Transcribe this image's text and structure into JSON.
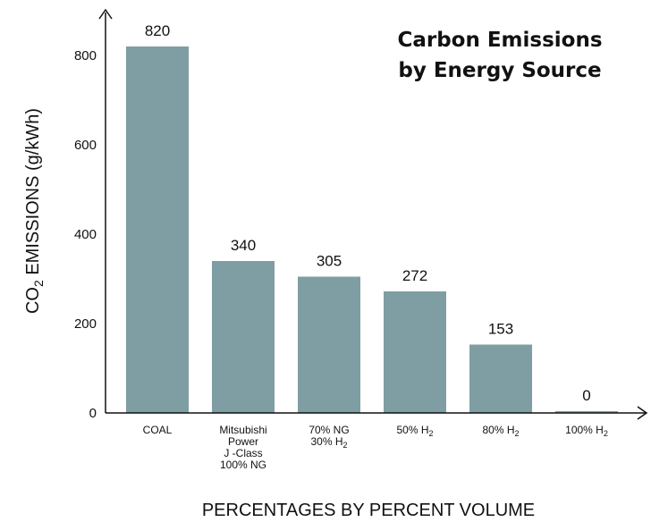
{
  "chart_data": {
    "type": "bar",
    "title_lines": [
      "Carbon Emissions",
      "by Energy Source"
    ],
    "ylabel": {
      "main": "CO",
      "sub": "2",
      "rest": " EMISSIONS (g/kWh)"
    },
    "xlabel": "PERCENTAGES BY PERCENT VOLUME",
    "ylim": [
      0,
      860
    ],
    "yticks": [
      0,
      200,
      400,
      600,
      800
    ],
    "categories": [
      {
        "lines": [
          [
            {
              "t": "COAL"
            }
          ]
        ]
      },
      {
        "lines": [
          [
            {
              "t": "Mitsubishi"
            }
          ],
          [
            {
              "t": "Power"
            }
          ],
          [
            {
              "t": "J -Class"
            }
          ],
          [
            {
              "t": "100% NG"
            }
          ]
        ]
      },
      {
        "lines": [
          [
            {
              "t": "70% NG"
            }
          ],
          [
            {
              "t": "30% H"
            },
            {
              "t": "2",
              "sub": true
            }
          ]
        ]
      },
      {
        "lines": [
          [
            {
              "t": "50% H"
            },
            {
              "t": "2",
              "sub": true
            }
          ]
        ]
      },
      {
        "lines": [
          [
            {
              "t": "80% H"
            },
            {
              "t": "2",
              "sub": true
            }
          ]
        ]
      },
      {
        "lines": [
          [
            {
              "t": "100% H"
            },
            {
              "t": "2",
              "sub": true
            }
          ]
        ]
      }
    ],
    "values": [
      820,
      340,
      305,
      272,
      153,
      0
    ],
    "value_labels": [
      "820",
      "340",
      "305",
      "272",
      "153",
      "0"
    ],
    "bar_color": "#7f9ea3",
    "grid": false,
    "legend": "none"
  }
}
